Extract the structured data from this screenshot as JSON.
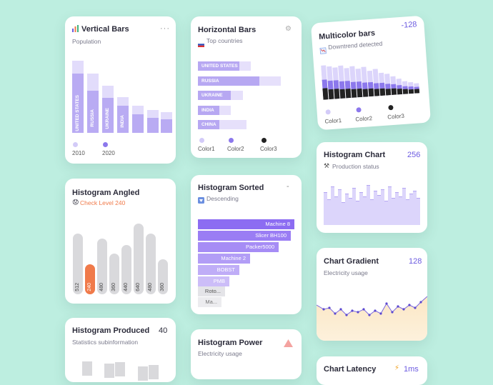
{
  "cards": {
    "vertical_bars": {
      "title": "Vertical Bars",
      "title_icon": "bar-chart-icon",
      "subtitle": "Population",
      "menu": "···",
      "legend": [
        "2010",
        "2020"
      ],
      "colors": {
        "back": "#e2dcfb",
        "front": "#b9abf3",
        "dot1": "#d3cbf8",
        "dot2": "#8c78ec"
      }
    },
    "horizontal_bars": {
      "title": "Horizontal Bars",
      "subtitle_icon": "flag-icon",
      "subtitle": "Top countries",
      "countries": [
        "UNITED STATES",
        "RUSSIA",
        "UKRAINE",
        "INDIA",
        "CHINA"
      ],
      "legend": [
        "Color1",
        "Color2",
        "Color3"
      ],
      "legend_colors": [
        "#d3cbf8",
        "#8c78ec",
        "#222222"
      ]
    },
    "multicolor_bars": {
      "title": "Multicolor bars",
      "subtitle": "Downtrend detected",
      "subtitle_icon": "chart-down-icon",
      "value": "-128",
      "legend": [
        "Color1",
        "Color2",
        "Color3"
      ],
      "legend_colors": [
        "#d3cbf8",
        "#8c78ec",
        "#222222"
      ]
    },
    "histogram_chart": {
      "title": "Histogram Chart",
      "value": "256",
      "subtitle_icon": "tools-icon",
      "subtitle": "Production status"
    },
    "histogram_angled": {
      "title": "Histogram Angled",
      "subtitle_icon": "emoji-icon",
      "subtitle": "Check Level 240",
      "values": [
        "512",
        "240",
        "480",
        "360",
        "440",
        "640",
        "480",
        "360"
      ],
      "highlight_index": 1,
      "highlight_color": "#f07a4a"
    },
    "histogram_sorted": {
      "title": "Histogram Sorted",
      "subtitle_icon": "sort-down-icon",
      "subtitle": "Descending",
      "menu": "-",
      "items": [
        "Machine 8",
        "Slicer BH100",
        "Packer5000",
        "Machine 2",
        "BOBST",
        "PMB",
        "Roto...",
        "Ma..."
      ]
    },
    "chart_gradient": {
      "title": "Chart Gradient",
      "value": "128",
      "subtitle": "Electricity usage"
    },
    "histogram_produced": {
      "title": "Histogram Produced",
      "value": "40",
      "subtitle": "Statistics subinformation"
    },
    "histogram_power": {
      "title": "Histogram Power",
      "subtitle": "Electricity usage",
      "icon": "warning-icon"
    },
    "chart_latency": {
      "title": "Chart Latency",
      "value": "1ms",
      "value_icon": "lightning-icon"
    }
  }
}
